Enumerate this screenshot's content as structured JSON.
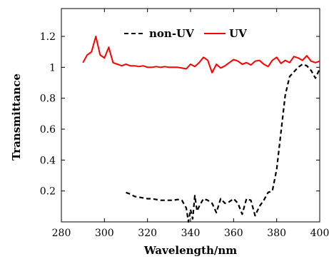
{
  "chart_data": {
    "type": "line",
    "xlabel": "Wavelength/nm",
    "ylabel": "Transmittance",
    "xlim": [
      280,
      400
    ],
    "ylim": [
      0,
      1.38
    ],
    "xticks": [
      "280",
      "300",
      "320",
      "340",
      "360",
      "380",
      "400"
    ],
    "yticks": [
      "0.2",
      "0.4",
      "0.6",
      "0.8",
      "1",
      "1.2"
    ],
    "legend_position": "top-right",
    "grid": false,
    "series": [
      {
        "name": "non-UV",
        "color": "#000000",
        "style": "dashed",
        "x": [
          310,
          312,
          314,
          316,
          318,
          320,
          322,
          324,
          326,
          328,
          330,
          332,
          334,
          336,
          338,
          339,
          340,
          341,
          342,
          343,
          344,
          346,
          348,
          350,
          352,
          354,
          356,
          358,
          360,
          362,
          364,
          366,
          368,
          370,
          372,
          374,
          376,
          378,
          380,
          382,
          384,
          386,
          388,
          390,
          392,
          394,
          396,
          398,
          400
        ],
        "y": [
          0.19,
          0.18,
          0.165,
          0.16,
          0.155,
          0.15,
          0.15,
          0.145,
          0.14,
          0.14,
          0.14,
          0.14,
          0.145,
          0.14,
          0.09,
          0.0,
          0.08,
          0.02,
          0.17,
          0.07,
          0.1,
          0.15,
          0.14,
          0.12,
          0.06,
          0.15,
          0.12,
          0.13,
          0.15,
          0.12,
          0.05,
          0.15,
          0.14,
          0.04,
          0.1,
          0.14,
          0.19,
          0.2,
          0.34,
          0.58,
          0.82,
          0.94,
          0.97,
          1.0,
          1.02,
          1.01,
          0.98,
          0.93,
          0.99
        ]
      },
      {
        "name": "UV",
        "color": "#ff0000",
        "style": "solid",
        "x": [
          290,
          292,
          294,
          296,
          298,
          300,
          302,
          304,
          306,
          308,
          310,
          312,
          314,
          316,
          318,
          320,
          322,
          324,
          326,
          328,
          330,
          332,
          334,
          336,
          338,
          340,
          342,
          344,
          346,
          348,
          350,
          352,
          354,
          356,
          358,
          360,
          362,
          364,
          366,
          368,
          370,
          372,
          374,
          376,
          378,
          380,
          382,
          384,
          386,
          388,
          390,
          392,
          394,
          396,
          398,
          400
        ],
        "y": [
          1.03,
          1.08,
          1.1,
          1.2,
          1.08,
          1.06,
          1.13,
          1.03,
          1.02,
          1.01,
          1.02,
          1.01,
          1.01,
          1.005,
          1.01,
          1.0,
          1.0,
          1.005,
          1.0,
          1.005,
          1.0,
          1.0,
          1.0,
          0.995,
          0.99,
          1.02,
          1.005,
          1.03,
          1.065,
          1.045,
          0.965,
          1.02,
          0.995,
          1.01,
          1.03,
          1.05,
          1.04,
          1.02,
          1.03,
          1.015,
          1.04,
          1.045,
          1.02,
          1.005,
          1.045,
          1.065,
          1.025,
          1.045,
          1.03,
          1.07,
          1.06,
          1.045,
          1.075,
          1.04,
          1.03,
          1.04
        ]
      }
    ]
  }
}
